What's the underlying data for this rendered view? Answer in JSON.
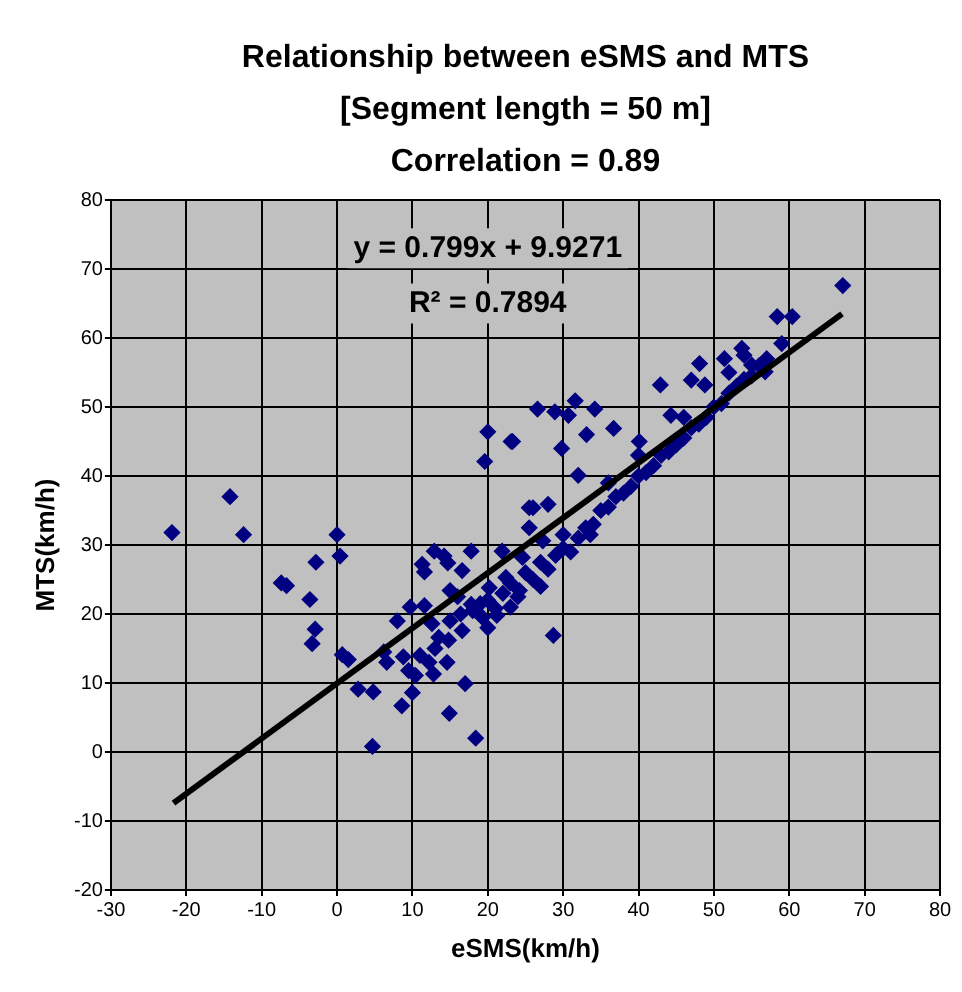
{
  "chart_data": {
    "type": "scatter",
    "title": "Relationship between eSMS and MTS",
    "subtitle": "[Segment length = 50 m]",
    "xlabel": "eSMS(km/h)",
    "ylabel": "MTS(km/h)",
    "annotations": [
      "Correlation = 0.89",
      "y = 0.799x + 9.9271",
      "R² = 0.7894"
    ],
    "xlim": [
      -30,
      80
    ],
    "xticks": [
      -30,
      -20,
      -10,
      0,
      10,
      20,
      30,
      40,
      50,
      60,
      70,
      80
    ],
    "ylim": [
      -20,
      80
    ],
    "yticks": [
      -20,
      -10,
      0,
      10,
      20,
      30,
      40,
      50,
      60,
      70,
      80
    ],
    "grid": true,
    "legend": false,
    "marker": "diamond",
    "series": [
      {
        "color": "#000080",
        "x": [
          -21.9,
          -14.2,
          -12.4,
          -7.4,
          -6.7,
          -3.6,
          -2.8,
          -2.9,
          -3.3,
          0,
          0.4,
          0.7,
          1.5,
          2.8,
          4.8,
          4.7,
          6.2,
          6.6,
          8.0,
          8.6,
          10.0,
          10.4,
          11.3,
          11.6,
          9.7,
          11.6,
          8.8,
          9.5,
          12.2,
          12.8,
          12.9,
          14.2,
          14.7,
          12.6,
          13.5,
          14.8,
          14.6,
          14.9,
          17.0,
          18.4,
          17.8,
          15.0,
          16.6,
          16.4,
          16.6,
          17.8,
          20.0,
          19.6,
          23.1,
          26.6,
          21.2,
          21.9,
          19.3,
          20.2,
          22.4,
          24.2,
          25.5,
          25.5,
          24.6,
          27.3,
          67.1,
          58.4,
          60.4,
          59.0,
          53.7,
          51.4,
          48.1,
          42.9,
          47.0,
          48.8,
          55.0,
          56.8,
          28.9,
          30.7,
          31.6,
          34.2,
          23.3,
          29.8,
          33.1,
          36.7,
          40.1,
          44.3,
          32.0,
          26.0,
          28.0,
          28.7,
          33.6,
          18,
          19,
          20,
          21,
          22,
          23,
          24,
          25,
          26,
          27,
          28,
          29,
          30,
          31,
          32,
          33,
          34,
          35,
          36,
          37,
          38,
          39,
          40,
          41,
          42,
          43,
          44,
          45,
          46,
          47,
          48,
          49,
          50,
          51,
          52,
          53,
          54,
          55,
          56,
          57,
          52,
          54,
          46,
          40,
          36,
          30,
          27,
          23,
          20,
          15,
          13,
          11,
          16
        ],
        "values": [
          31.8,
          37.0,
          31.5,
          24.5,
          24.1,
          22.1,
          27.5,
          17.8,
          15.7,
          31.5,
          28.4,
          14.1,
          13.4,
          9.1,
          8.7,
          0.8,
          14.5,
          13.0,
          19.0,
          6.7,
          8.6,
          11.1,
          27.2,
          26.1,
          21.0,
          21.2,
          13.8,
          11.8,
          13.0,
          11.3,
          29.1,
          28.4,
          27.4,
          18.6,
          16.6,
          16.2,
          13.0,
          5.6,
          9.9,
          2.0,
          29.1,
          23.4,
          26.3,
          20.0,
          17.6,
          21.4,
          46.4,
          42.1,
          45.0,
          49.7,
          19.8,
          29.1,
          19.5,
          23.8,
          25.3,
          23.4,
          35.4,
          32.5,
          28.2,
          30.6,
          67.6,
          63.1,
          63.1,
          59.2,
          58.5,
          57.0,
          56.3,
          53.2,
          53.9,
          53.2,
          56.1,
          55.1,
          49.3,
          48.8,
          50.9,
          49.7,
          45.0,
          44.0,
          46.0,
          46.9,
          45.0,
          48.8,
          40.1,
          35.4,
          35.9,
          16.9,
          31.5,
          20.5,
          21.5,
          22,
          20.8,
          23,
          24.5,
          22.5,
          26,
          25,
          27.5,
          26.5,
          28.5,
          29.5,
          29,
          31,
          32.5,
          33,
          35,
          35.5,
          37,
          37.5,
          38.5,
          40,
          40.5,
          41.5,
          43,
          43.5,
          44.5,
          45.5,
          47,
          47.5,
          48.5,
          50,
          50.5,
          52,
          53,
          54,
          54.5,
          56,
          57,
          55,
          57.5,
          48.5,
          43,
          39,
          31.5,
          24,
          21,
          18,
          19,
          15,
          14,
          22.5
        ]
      },
      {
        "type": "line",
        "color": "#000000",
        "marker": "none",
        "x": [
          -21.7,
          67
        ],
        "values": [
          -7.4,
          63.5
        ]
      }
    ]
  }
}
